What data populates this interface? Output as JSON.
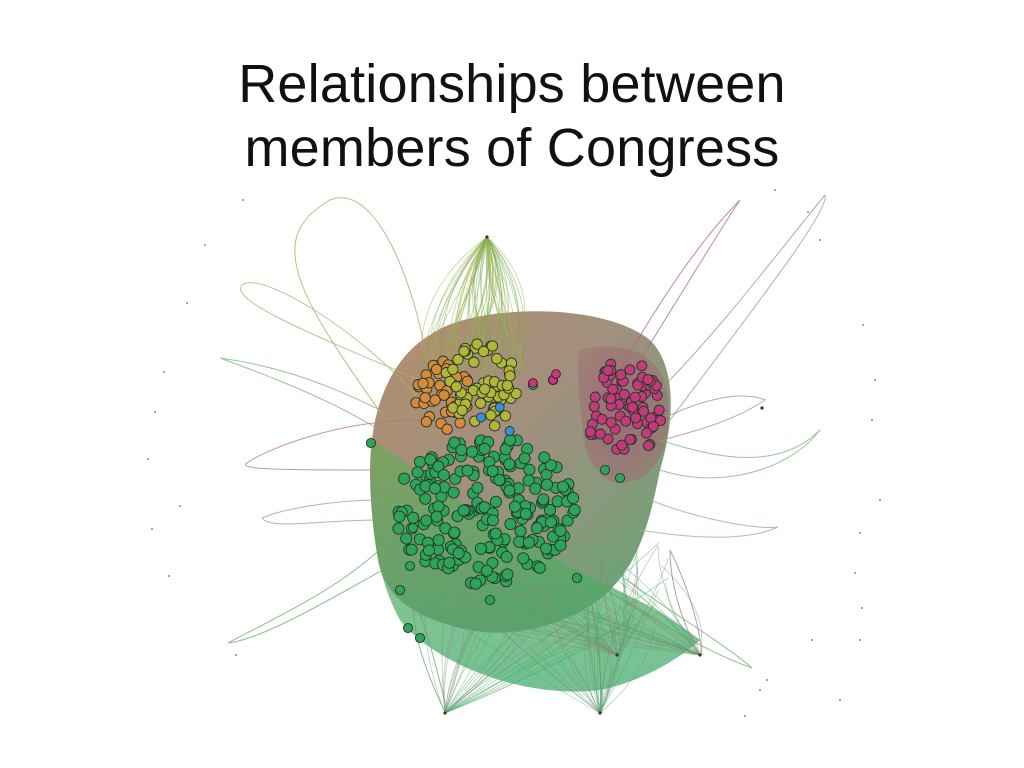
{
  "slide": {
    "title_line1": "Relationships between",
    "title_line2": "members of Congress"
  },
  "network": {
    "clusters": [
      {
        "name": "green",
        "node_count": 210,
        "fill": "#2fa35a",
        "edge": "#3fae6a"
      },
      {
        "name": "olive",
        "node_count": 60,
        "fill": "#b5b43a",
        "edge": "#a8b24a"
      },
      {
        "name": "orange",
        "node_count": 45,
        "fill": "#d88a3a",
        "edge": "#c98a4a"
      },
      {
        "name": "magenta",
        "node_count": 75,
        "fill": "#c23a7a",
        "edge": "#b8507e"
      },
      {
        "name": "blue",
        "node_count": 3,
        "fill": "#3a8fd0",
        "edge": "#5a9ad0"
      }
    ],
    "hull_colors": {
      "brown": "#9a6a4a",
      "grey": "#8a8a78",
      "green": "#4aaa6a"
    }
  }
}
